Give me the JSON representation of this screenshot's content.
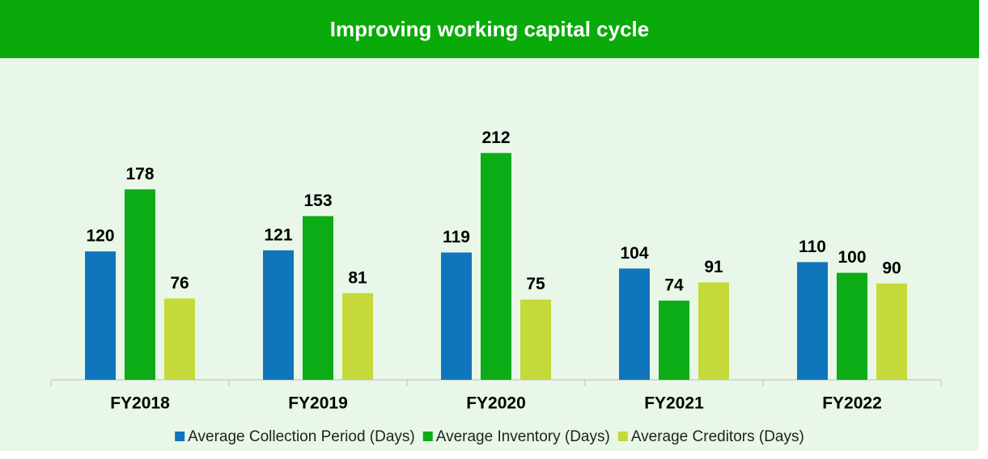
{
  "chart_data": {
    "type": "bar",
    "title": "Improving working capital cycle",
    "categories": [
      "FY2018",
      "FY2019",
      "FY2020",
      "FY2021",
      "FY2022"
    ],
    "series": [
      {
        "name": "Average Collection Period (Days)",
        "color": "#0f75bd",
        "values": [
          120,
          121,
          119,
          104,
          110
        ]
      },
      {
        "name": "Average Inventory (Days)",
        "color": "#0bac16",
        "values": [
          178,
          153,
          212,
          74,
          100
        ]
      },
      {
        "name": "Average Creditors (Days)",
        "color": "#c5d93a",
        "values": [
          76,
          81,
          75,
          91,
          90
        ]
      }
    ],
    "ylim": [
      0,
      250
    ]
  }
}
